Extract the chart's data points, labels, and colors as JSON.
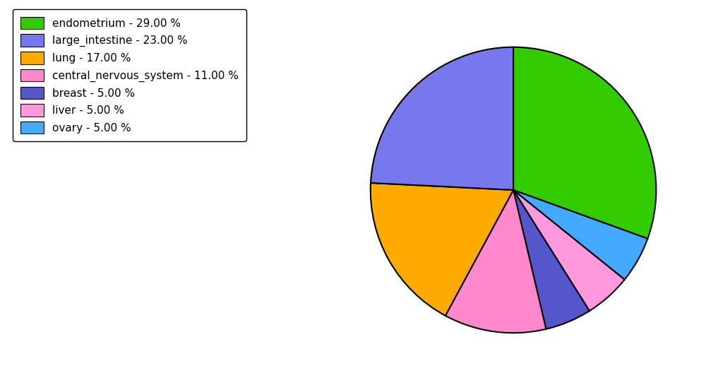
{
  "labels": [
    "endometrium",
    "large_intestine",
    "lung",
    "central_nervous_system",
    "breast",
    "liver",
    "ovary"
  ],
  "values": [
    29,
    23,
    17,
    11,
    5,
    5,
    5
  ],
  "colors": [
    "#33cc00",
    "#7777ee",
    "#ffaa00",
    "#ff88cc",
    "#5555cc",
    "#ff99dd",
    "#44aaff"
  ],
  "legend_labels": [
    "endometrium - 29.00 %",
    "large_intestine - 23.00 %",
    "lung - 17.00 %",
    "central_nervous_system - 11.00 %",
    "breast - 5.00 %",
    "liver - 5.00 %",
    "ovary - 5.00 %"
  ],
  "startangle": 90,
  "background_color": "#ffffff",
  "pie_order": [
    0,
    6,
    5,
    4,
    3,
    2,
    1
  ]
}
